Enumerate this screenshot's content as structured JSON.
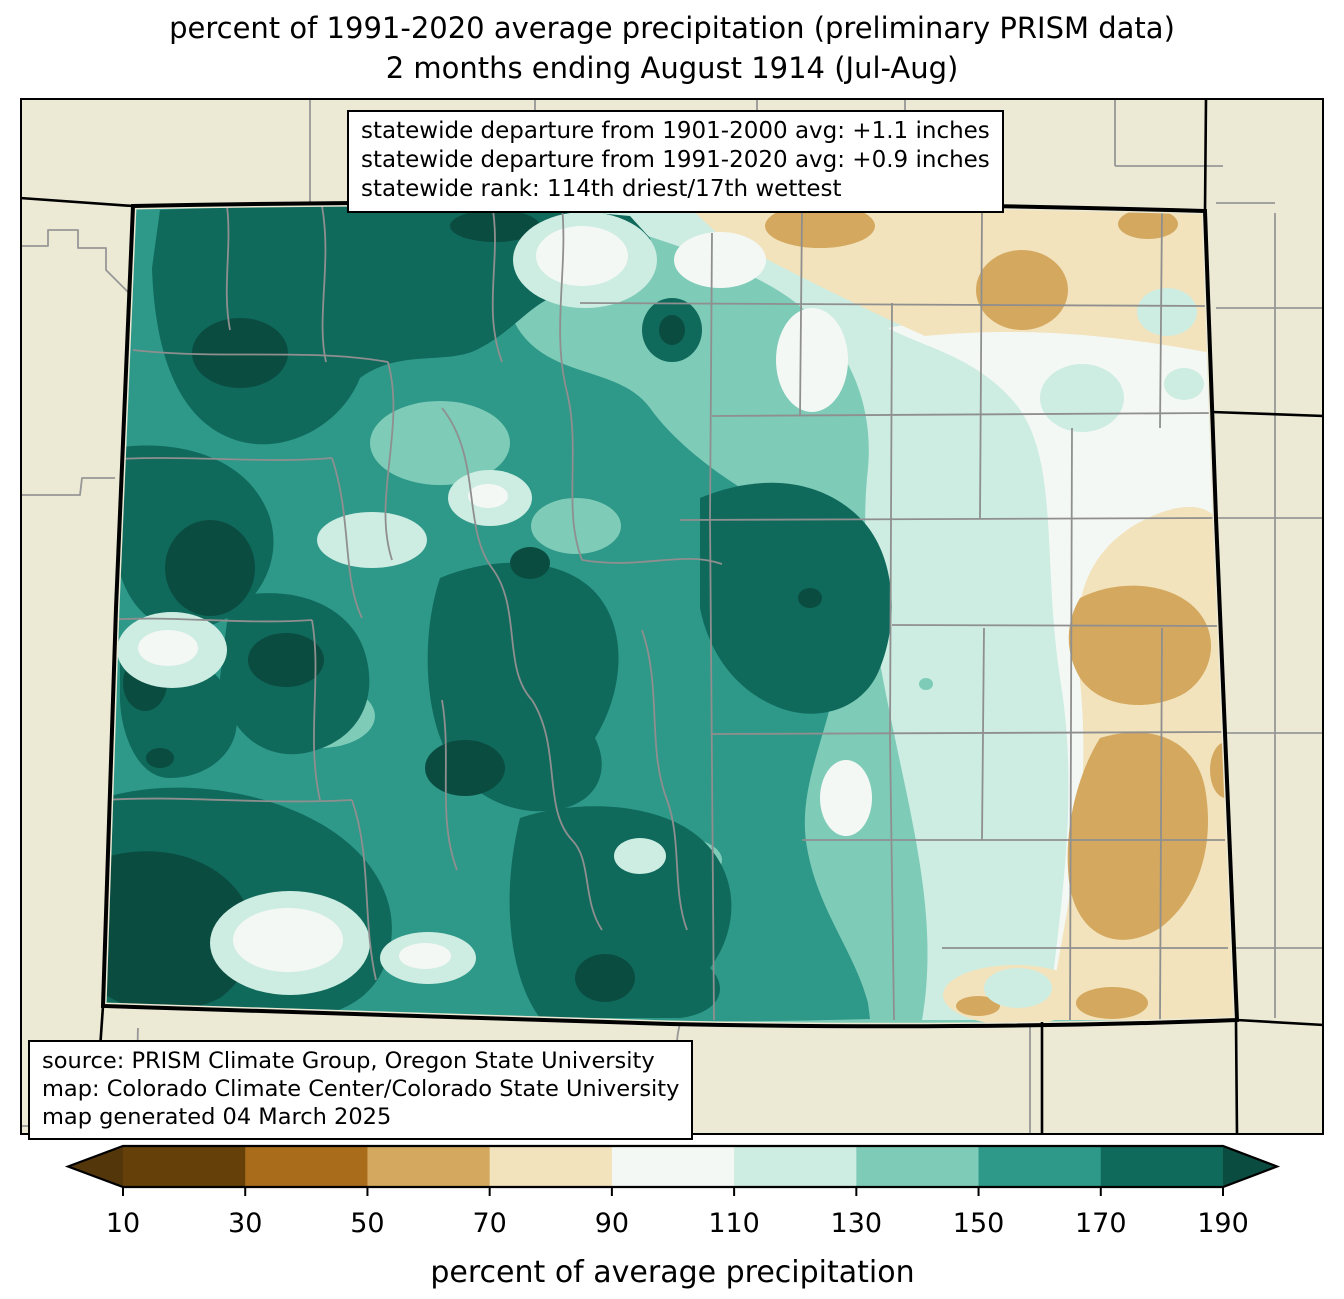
{
  "title": {
    "line1": "percent of 1991-2020 average precipitation (preliminary PRISM data)",
    "line2": "2 months ending August 1914 (Jul-Aug)"
  },
  "stats_box": {
    "line1": "statewide departure from 1901-2000 avg: +1.1 inches",
    "line2": "statewide departure from 1991-2020 avg: +0.9 inches",
    "line3": "statewide rank: 114th driest/17th wettest"
  },
  "source_box": {
    "line1": "source: PRISM Climate Group, Oregon State University",
    "line2": "map: Colorado Climate Center/Colorado State University",
    "line3": "map generated 04 March 2025"
  },
  "colorbar": {
    "label": "percent of average precipitation",
    "ticks": [
      "10",
      "30",
      "50",
      "70",
      "90",
      "110",
      "130",
      "150",
      "170",
      "190"
    ],
    "tick_values": [
      10,
      30,
      50,
      70,
      90,
      110,
      130,
      150,
      170,
      190
    ],
    "segment_colors": [
      "#654009",
      "#a96c1b",
      "#d4a85e",
      "#f2e3bc",
      "#f4f8f5",
      "#cdece2",
      "#7ecbb8",
      "#2e9889",
      "#0f6a5c"
    ],
    "under_color": "#53360a",
    "over_color": "#0b4c41",
    "outline_color": "#000000"
  },
  "map": {
    "region": "Colorado",
    "outside_background_color": "#ece9d5",
    "state_border_color": "#000000",
    "county_line_color": "#8f8f8f"
  },
  "chart_data": {
    "type": "heatmap",
    "subtype": "filled-contour-precipitation-map",
    "title": "percent of 1991-2020 average precipitation (preliminary PRISM data)",
    "subtitle": "2 months ending August 1914 (Jul-Aug)",
    "region": "Colorado (with county boundaries, neighboring states shown in beige)",
    "variable": "percent of average precipitation",
    "period": "Jul-Aug 1914",
    "baseline": "1991-2020 average",
    "colorbar_levels": [
      10,
      30,
      50,
      70,
      90,
      110,
      130,
      150,
      170,
      190
    ],
    "colorbar_colors_low_to_high": [
      "#53360a",
      "#654009",
      "#a96c1b",
      "#d4a85e",
      "#f2e3bc",
      "#f4f8f5",
      "#cdece2",
      "#7ecbb8",
      "#2e9889",
      "#0f6a5c",
      "#0b4c41"
    ],
    "legend_position": "bottom horizontal colorbar with extend arrows both ends",
    "spatial_pattern": "western and southwestern Colorado well above average (150 to >190%), central mountains 130-190%, eastern plains near or below average (70-110%) with driest pockets 50-70% in the southeast and northeast",
    "annotations": [
      "statewide departure from 1901-2000 avg: +1.1 inches",
      "statewide departure from 1991-2020 avg: +0.9 inches",
      "statewide rank: 114th driest/17th wettest",
      "source: PRISM Climate Group, Oregon State University",
      "map: Colorado Climate Center/Colorado State University",
      "map generated 04 March 2025"
    ]
  }
}
